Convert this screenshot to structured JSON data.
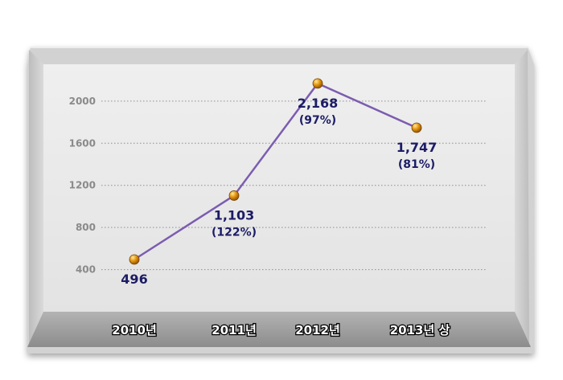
{
  "chart_data": {
    "type": "line",
    "categories": [
      "2010년",
      "2011년",
      "2012년",
      "2013년 상"
    ],
    "values": [
      496,
      1103,
      2168,
      1747
    ],
    "data_labels": [
      "496",
      "1,103",
      "2,168",
      "1,747"
    ],
    "growth_labels": [
      "",
      "(122%)",
      "(97%)",
      "(81%)"
    ],
    "yticks": [
      400,
      800,
      1200,
      1600,
      2000
    ],
    "ylim": [
      0,
      2350
    ],
    "grid": true,
    "title": "",
    "xlabel": "",
    "ylabel": "",
    "colors": {
      "line": "#7b5cb0",
      "marker": "#e69a12",
      "label": "#1c1c66",
      "panel_back": "#e7e7e7",
      "floor": "#9d9d9d"
    }
  }
}
